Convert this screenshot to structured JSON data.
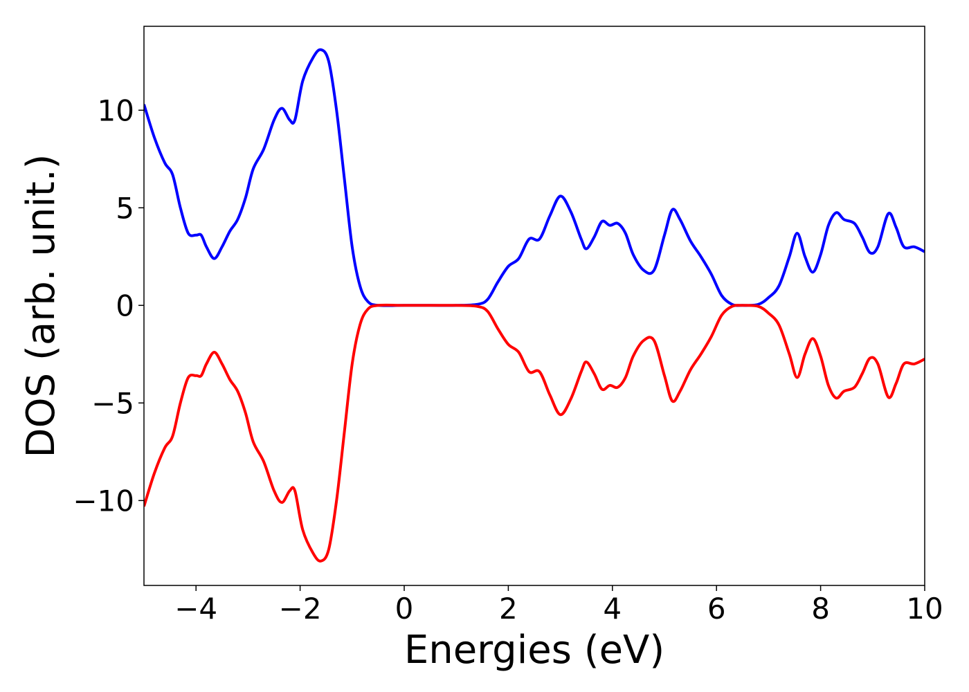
{
  "chart_data": {
    "type": "line",
    "xlabel": "Energies (eV)",
    "ylabel": "DOS (arb. unit.)",
    "x": [
      -5,
      -4.8,
      -4.6,
      -4.45,
      -4.3,
      -4.15,
      -4.0,
      -3.9,
      -3.8,
      -3.65,
      -3.5,
      -3.35,
      -3.2,
      -3.05,
      -2.9,
      -2.7,
      -2.5,
      -2.35,
      -2.2,
      -2.1,
      -1.95,
      -1.75,
      -1.6,
      -1.45,
      -1.3,
      -1.15,
      -1.0,
      -0.85,
      -0.7,
      -0.5,
      0,
      0.5,
      1.0,
      1.4,
      1.6,
      1.8,
      2.0,
      2.2,
      2.4,
      2.6,
      2.8,
      3.0,
      3.2,
      3.4,
      3.5,
      3.65,
      3.8,
      3.95,
      4.1,
      4.25,
      4.4,
      4.6,
      4.8,
      5.0,
      5.15,
      5.3,
      5.5,
      5.7,
      5.9,
      6.1,
      6.3,
      6.5,
      6.8,
      7.0,
      7.2,
      7.4,
      7.55,
      7.7,
      7.85,
      8.0,
      8.15,
      8.3,
      8.45,
      8.65,
      8.8,
      8.95,
      9.1,
      9.3,
      9.45,
      9.6,
      9.8,
      10
    ],
    "series": [
      {
        "color": "#0000ff",
        "values": [
          10.3,
          8.6,
          7.3,
          6.7,
          5.0,
          3.7,
          3.6,
          3.6,
          3.0,
          2.4,
          3.0,
          3.8,
          4.4,
          5.5,
          7.0,
          8.0,
          9.5,
          10.1,
          9.5,
          9.5,
          11.5,
          12.7,
          13.1,
          12.5,
          10.0,
          6.5,
          3.0,
          1.0,
          0.2,
          0.0,
          0,
          0,
          0,
          0.05,
          0.3,
          1.2,
          2.0,
          2.4,
          3.4,
          3.4,
          4.6,
          5.6,
          4.8,
          3.4,
          2.9,
          3.5,
          4.3,
          4.1,
          4.2,
          3.7,
          2.6,
          1.8,
          1.8,
          3.6,
          4.9,
          4.4,
          3.3,
          2.5,
          1.6,
          0.5,
          0.05,
          0,
          0.05,
          0.4,
          1.0,
          2.5,
          3.7,
          2.5,
          1.7,
          2.6,
          4.1,
          4.75,
          4.4,
          4.2,
          3.5,
          2.7,
          3.0,
          4.7,
          4.0,
          3.0,
          3.0,
          2.75
        ]
      },
      {
        "color": "#ff0000",
        "values": [
          -10.3,
          -8.6,
          -7.3,
          -6.7,
          -5.0,
          -3.7,
          -3.6,
          -3.6,
          -3.0,
          -2.4,
          -3.0,
          -3.8,
          -4.4,
          -5.5,
          -7.0,
          -8.0,
          -9.5,
          -10.1,
          -9.5,
          -9.5,
          -11.5,
          -12.7,
          -13.1,
          -12.5,
          -10.0,
          -6.5,
          -3.0,
          -1.0,
          -0.2,
          0.0,
          0,
          0,
          0,
          -0.05,
          -0.3,
          -1.2,
          -2.0,
          -2.4,
          -3.4,
          -3.4,
          -4.6,
          -5.6,
          -4.8,
          -3.4,
          -2.9,
          -3.5,
          -4.3,
          -4.1,
          -4.2,
          -3.7,
          -2.6,
          -1.8,
          -1.8,
          -3.6,
          -4.9,
          -4.4,
          -3.3,
          -2.5,
          -1.6,
          -0.5,
          -0.05,
          0,
          -0.05,
          -0.4,
          -1.0,
          -2.5,
          -3.7,
          -2.5,
          -1.7,
          -2.6,
          -4.1,
          -4.75,
          -4.4,
          -4.2,
          -3.5,
          -2.7,
          -3.0,
          -4.7,
          -4.0,
          -3.0,
          -3.0,
          -2.75
        ]
      }
    ],
    "xlim": [
      -5,
      10
    ],
    "ylim": [
      -14.35,
      14.3
    ],
    "xticks": [
      {
        "value": -4,
        "label": "−4"
      },
      {
        "value": -2,
        "label": "−2"
      },
      0,
      2,
      4,
      6,
      8,
      10
    ],
    "yticks": [
      {
        "value": -10,
        "label": "−10"
      },
      {
        "value": -5,
        "label": "−5"
      },
      0,
      5,
      10
    ],
    "grid": false
  }
}
